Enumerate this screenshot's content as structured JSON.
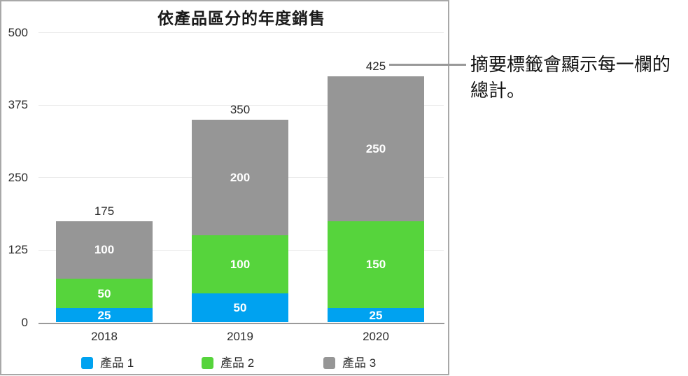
{
  "chart_data": {
    "type": "bar",
    "stacked": true,
    "title": "依產品區分的年度銷售",
    "categories": [
      "2018",
      "2019",
      "2020"
    ],
    "series": [
      {
        "name": "產品 1",
        "color": "#00a2f0",
        "values": [
          25,
          50,
          25
        ]
      },
      {
        "name": "產品 2",
        "color": "#56d43c",
        "values": [
          50,
          100,
          150
        ]
      },
      {
        "name": "產品 3",
        "color": "#969696",
        "values": [
          100,
          200,
          250
        ]
      }
    ],
    "totals": [
      175,
      350,
      425
    ],
    "yticks": [
      0,
      125,
      250,
      375,
      500
    ],
    "ylim": [
      0,
      500
    ],
    "xlabel": "",
    "ylabel": "",
    "grid": true,
    "legend_position": "bottom"
  },
  "callout": {
    "line1": "摘要標籤會顯示每一欄的",
    "line2": "總計。",
    "full_text": "摘要標籤會顯示每一欄的總計。"
  },
  "colors": {
    "product_1": "#00a2f0",
    "product_2": "#56d43c",
    "product_3": "#969696",
    "gridline": "#ececec",
    "axis_line": "#9a9a9a",
    "panel_border": "#a8a8a8",
    "leader_line": "#999999"
  }
}
